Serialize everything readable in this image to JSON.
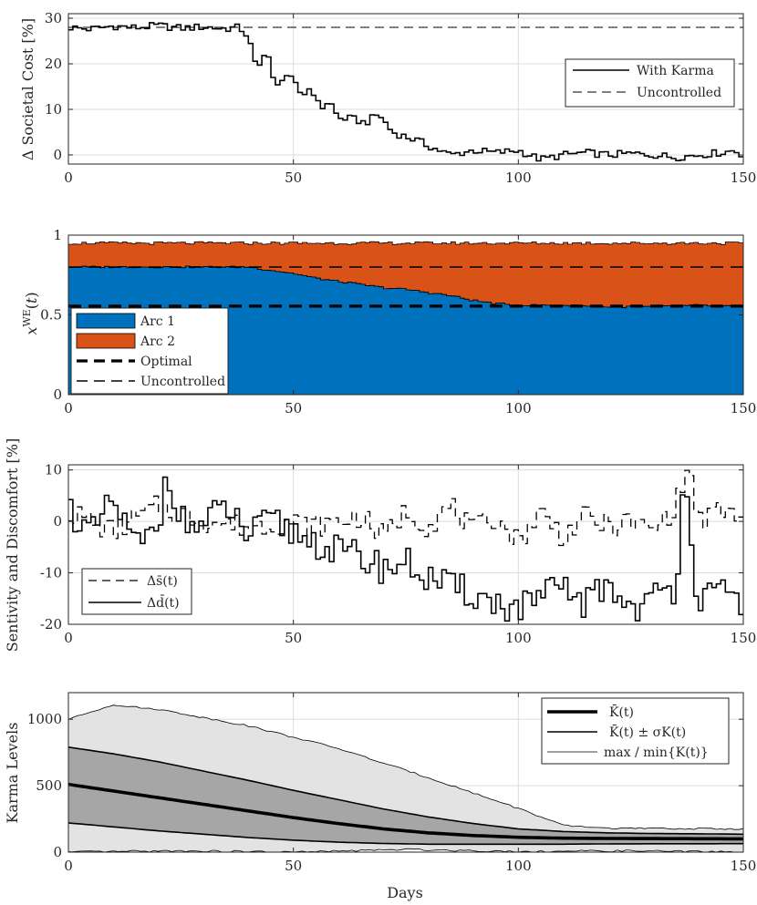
{
  "figure": {
    "x_label": "Days"
  },
  "chart_data": [
    {
      "type": "line",
      "title": "",
      "xlabel": "",
      "ylabel": "Δ Societal Cost [%]",
      "xlim": [
        0,
        150
      ],
      "ylim": [
        -2,
        31
      ],
      "xticks": [
        "0",
        "50",
        "100",
        "150"
      ],
      "yticks": [
        "0",
        "10",
        "20",
        "30"
      ],
      "legend": {
        "position": "right",
        "entries": [
          "With Karma",
          "Uncontrolled"
        ]
      },
      "series": [
        {
          "name": "With Karma",
          "style": "solid-step",
          "x": [
            0,
            5,
            10,
            15,
            20,
            25,
            30,
            35,
            38,
            40,
            42,
            44,
            46,
            48,
            50,
            52,
            54,
            56,
            58,
            60,
            63,
            66,
            69,
            72,
            75,
            78,
            80,
            85,
            90,
            95,
            100,
            105,
            110,
            115,
            120,
            125,
            130,
            135,
            140,
            145,
            148,
            150
          ],
          "y": [
            28,
            27.6,
            28.3,
            27.9,
            28.4,
            27.8,
            28.1,
            27.7,
            28.0,
            26,
            18,
            24,
            14,
            18,
            16,
            13,
            15,
            10,
            12,
            8,
            8,
            7,
            9,
            5,
            4,
            3,
            2,
            0,
            1,
            0.5,
            1,
            -1,
            0,
            0.5,
            0,
            0.3,
            0,
            -0.5,
            0,
            0.5,
            1,
            0
          ]
        },
        {
          "name": "Uncontrolled",
          "style": "dashed",
          "x": [
            0,
            150
          ],
          "y": [
            28,
            28
          ]
        }
      ]
    },
    {
      "type": "area",
      "title": "",
      "xlabel": "",
      "ylabel": "x^WE(t)",
      "xlim": [
        0,
        150
      ],
      "ylim": [
        0,
        1
      ],
      "xticks": [
        "0",
        "50",
        "100",
        "150"
      ],
      "yticks": [
        "0",
        "0.5",
        "1"
      ],
      "legend": {
        "position": "bottom-left",
        "entries": [
          "Arc 1",
          "Arc 2",
          "Optimal",
          "Uncontrolled"
        ]
      },
      "series": [
        {
          "name": "Arc 1",
          "color": "#0072BD",
          "x": [
            0,
            10,
            20,
            30,
            40,
            45,
            50,
            55,
            60,
            65,
            70,
            75,
            80,
            85,
            90,
            95,
            100,
            110,
            120,
            130,
            140,
            150
          ],
          "y": [
            0.8,
            0.8,
            0.8,
            0.8,
            0.8,
            0.78,
            0.76,
            0.73,
            0.71,
            0.69,
            0.67,
            0.66,
            0.64,
            0.62,
            0.59,
            0.57,
            0.56,
            0.56,
            0.55,
            0.55,
            0.56,
            0.55
          ]
        },
        {
          "name": "Arc 2",
          "color": "#D95319",
          "note": "stacked total",
          "x": [
            0,
            25,
            50,
            75,
            100,
            125,
            150
          ],
          "y": [
            0.95,
            0.95,
            0.95,
            0.95,
            0.95,
            0.95,
            0.95
          ]
        },
        {
          "name": "Optimal",
          "style": "thick-dashed",
          "x": [
            0,
            150
          ],
          "y": [
            0.555,
            0.555
          ]
        },
        {
          "name": "Uncontrolled",
          "style": "dashed",
          "x": [
            0,
            150
          ],
          "y": [
            0.8,
            0.8
          ]
        }
      ]
    },
    {
      "type": "line",
      "title": "",
      "xlabel": "",
      "ylabel": "Sentivity and Discomfort [%]",
      "xlim": [
        0,
        150
      ],
      "ylim": [
        -20,
        11
      ],
      "xticks": [
        "0",
        "50",
        "100",
        "150"
      ],
      "yticks": [
        "10",
        "0",
        "-10",
        "-20"
      ],
      "legend": {
        "position": "bottom-left",
        "entries": [
          "Δs̄(t)",
          "Δd̄(t)"
        ]
      },
      "series": [
        {
          "name": "Δs̄(t)",
          "style": "dashed-step",
          "x": [
            0,
            10,
            20,
            30,
            40,
            50,
            55,
            60,
            65,
            70,
            75,
            80,
            85,
            90,
            95,
            100,
            105,
            110,
            115,
            120,
            125,
            130,
            135,
            138,
            140,
            145,
            150
          ],
          "y": [
            2,
            -2,
            3,
            0,
            -1,
            0,
            -1,
            0,
            1,
            -3,
            2,
            -1,
            3,
            -2,
            1,
            -4,
            2,
            -3,
            1,
            -1,
            0,
            -2,
            3,
            11,
            0,
            2,
            1
          ]
        },
        {
          "name": "Δd̄(t)",
          "style": "solid-step",
          "x": [
            0,
            5,
            10,
            15,
            20,
            22,
            25,
            30,
            35,
            40,
            45,
            50,
            55,
            60,
            65,
            70,
            75,
            80,
            85,
            90,
            95,
            100,
            105,
            110,
            115,
            120,
            125,
            130,
            135,
            137,
            140,
            145,
            150
          ],
          "y": [
            3,
            -3,
            4,
            -5,
            -2,
            11,
            0,
            -1,
            3,
            -3,
            0,
            -2,
            -4,
            -6,
            -7,
            -9,
            -8,
            -11,
            -13,
            -14,
            -16,
            -17,
            -15,
            -13,
            -16,
            -12,
            -17,
            -15,
            -13,
            11,
            -16,
            -14,
            -16
          ]
        }
      ]
    },
    {
      "type": "area",
      "title": "",
      "xlabel": "Days",
      "ylabel": "Karma Levels",
      "xlim": [
        0,
        150
      ],
      "ylim": [
        0,
        1200
      ],
      "xticks": [
        "0",
        "50",
        "100",
        "150"
      ],
      "yticks": [
        "0",
        "500",
        "1000"
      ],
      "legend": {
        "position": "top-right",
        "entries": [
          "K̄(t)",
          "K̄(t) ± σK(t)",
          "max / min{K(t)}"
        ]
      },
      "series": [
        {
          "name": "max",
          "x": [
            0,
            10,
            15,
            20,
            40,
            60,
            80,
            100,
            110,
            120,
            130,
            140,
            150
          ],
          "y": [
            1000,
            1110,
            1090,
            1075,
            950,
            780,
            560,
            330,
            200,
            180,
            178,
            176,
            175
          ]
        },
        {
          "name": "min",
          "x": [
            0,
            25,
            50,
            75,
            100,
            125,
            150
          ],
          "y": [
            0,
            10,
            0,
            20,
            5,
            10,
            0
          ]
        },
        {
          "name": "mean",
          "x": [
            0,
            10,
            20,
            30,
            40,
            50,
            60,
            70,
            80,
            90,
            100,
            110,
            120,
            130,
            140,
            150
          ],
          "y": [
            510,
            460,
            410,
            360,
            310,
            260,
            215,
            175,
            145,
            125,
            112,
            105,
            103,
            102,
            101,
            100
          ]
        },
        {
          "name": "upper",
          "x": [
            0,
            10,
            20,
            30,
            40,
            50,
            60,
            70,
            80,
            90,
            100,
            110,
            120,
            130,
            140,
            150
          ],
          "y": [
            790,
            740,
            680,
            610,
            540,
            465,
            395,
            325,
            265,
            215,
            175,
            155,
            145,
            140,
            138,
            135
          ]
        },
        {
          "name": "lower",
          "x": [
            0,
            10,
            20,
            30,
            40,
            50,
            60,
            70,
            80,
            90,
            100,
            110,
            120,
            130,
            140,
            150
          ],
          "y": [
            220,
            190,
            160,
            135,
            110,
            90,
            75,
            65,
            60,
            60,
            60,
            60,
            62,
            63,
            63,
            64
          ]
        }
      ]
    }
  ]
}
